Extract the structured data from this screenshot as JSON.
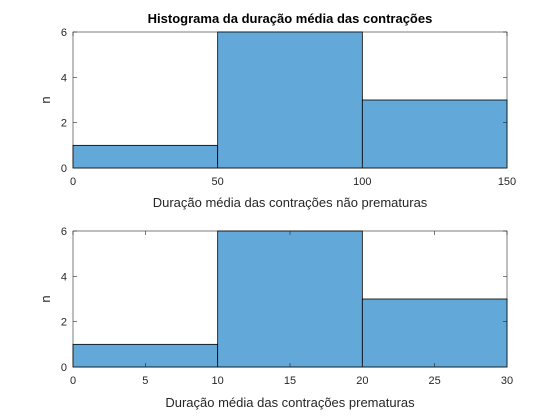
{
  "chart_data": [
    {
      "type": "bar",
      "title": "Histograma da duração média das contrações",
      "xlabel": "Duração média das contrações não prematuras",
      "ylabel": "n",
      "bin_edges": [
        0,
        50,
        100,
        150
      ],
      "values": [
        1,
        6,
        3
      ],
      "xlim": [
        0,
        150
      ],
      "ylim": [
        0,
        6
      ],
      "xticks": [
        0,
        50,
        100,
        150
      ],
      "yticks": [
        0,
        2,
        4,
        6
      ],
      "grid": false,
      "bar_color": "#62a8d8"
    },
    {
      "type": "bar",
      "title": "",
      "xlabel": "Duração média das contrações prematuras",
      "ylabel": "n",
      "bin_edges": [
        0,
        10,
        20,
        30
      ],
      "values": [
        1,
        6,
        3
      ],
      "xlim": [
        0,
        30
      ],
      "ylim": [
        0,
        6
      ],
      "xticks": [
        0,
        5,
        10,
        15,
        20,
        25,
        30
      ],
      "yticks": [
        0,
        2,
        4,
        6
      ],
      "grid": false,
      "bar_color": "#62a8d8"
    }
  ]
}
